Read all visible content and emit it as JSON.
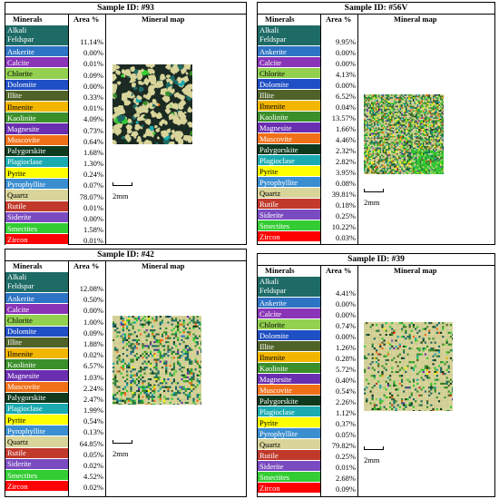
{
  "headers": {
    "minerals": "Minerals",
    "area": "Area %",
    "map": "Mineral map"
  },
  "scale_label": "2mm",
  "mineral_colors": {
    "Alkali Feldspar": "#1e6b66",
    "Ankerite": "#2e74c4",
    "Calcite": "#8a34b8",
    "Chlorite": "#92d050",
    "Dolomite": "#1f4fc4",
    "Illite": "#4f6228",
    "Ilmenite": "#f2b600",
    "Kaolinite": "#3a8f2a",
    "Magnesite": "#6a2fb0",
    "Muscovite": "#f07018",
    "Palygorskite": "#0f3a1e",
    "Plagioclase": "#1aaab0",
    "Pyrite": "#ffff00",
    "Pyrophyllite": "#3b8ecf",
    "Quartz": "#d8d49a",
    "Rutile": "#c0392b",
    "Siderite": "#7a4bc0",
    "Smectites": "#33cc33",
    "Zircon": "#ff0000"
  },
  "samples": [
    {
      "title": "Sample ID: #93",
      "rows": [
        {
          "name": [
            "Alkali",
            "Feldspar"
          ],
          "value": "11.14%"
        },
        {
          "name": [
            "Ankerite"
          ],
          "value": "0.00%"
        },
        {
          "name": [
            "Calcite"
          ],
          "value": "0.01%"
        },
        {
          "name": [
            "Chlorite"
          ],
          "value": "0.09%"
        },
        {
          "name": [
            "Dolomite"
          ],
          "value": "0.00%"
        },
        {
          "name": [
            "Illite"
          ],
          "value": "0.33%"
        },
        {
          "name": [
            "Ilmenite"
          ],
          "value": "0.01%"
        },
        {
          "name": [
            "Kaolinite"
          ],
          "value": "4.09%"
        },
        {
          "name": [
            "Magnesite"
          ],
          "value": "0.73%"
        },
        {
          "name": [
            "Muscovite"
          ],
          "value": "0.64%"
        },
        {
          "name": [
            "Palygorskite"
          ],
          "value": "1.68%"
        },
        {
          "name": [
            "Plagioclase"
          ],
          "value": "1.30%"
        },
        {
          "name": [
            "Pyrite"
          ],
          "value": "0.24%"
        },
        {
          "name": [
            "Pyrophyllite"
          ],
          "value": "0.07%"
        },
        {
          "name": [
            "Quartz"
          ],
          "value": "78.07%"
        },
        {
          "name": [
            "Rutile"
          ],
          "value": "0.01%"
        },
        {
          "name": [
            "Siderite"
          ],
          "value": "0.00%"
        },
        {
          "name": [
            "Smectites"
          ],
          "value": "1.58%"
        },
        {
          "name": [
            "Zircon"
          ],
          "value": "0.01%"
        }
      ]
    },
    {
      "title": "Sample ID: #56V",
      "rows": [
        {
          "name": [
            "Alkali",
            "Feldspar"
          ],
          "value": "9.95%"
        },
        {
          "name": [
            "Ankerite"
          ],
          "value": "0.00%"
        },
        {
          "name": [
            "Calcite"
          ],
          "value": "0.00%"
        },
        {
          "name": [
            "Chlorite"
          ],
          "value": "4.13%"
        },
        {
          "name": [
            "Dolomite"
          ],
          "value": "0.00%"
        },
        {
          "name": [
            "Illite"
          ],
          "value": "6.52%"
        },
        {
          "name": [
            "Ilmenite"
          ],
          "value": "0.04%"
        },
        {
          "name": [
            "Kaolinite"
          ],
          "value": "13.57%"
        },
        {
          "name": [
            "Magnesite"
          ],
          "value": "1.66%"
        },
        {
          "name": [
            "Muscovite"
          ],
          "value": "4.46%"
        },
        {
          "name": [
            "Palygorskite"
          ],
          "value": "2.32%"
        },
        {
          "name": [
            "Plagioclase"
          ],
          "value": "2.82%"
        },
        {
          "name": [
            "Pyrite"
          ],
          "value": "3.95%"
        },
        {
          "name": [
            "Pyrophyllite"
          ],
          "value": "0.08%"
        },
        {
          "name": [
            "Quartz"
          ],
          "value": "39.81%"
        },
        {
          "name": [
            "Rutile"
          ],
          "value": "0.18%"
        },
        {
          "name": [
            "Siderite"
          ],
          "value": "0.25%"
        },
        {
          "name": [
            "Smectites"
          ],
          "value": "10.22%"
        },
        {
          "name": [
            "Zircon"
          ],
          "value": "0.03%"
        }
      ]
    },
    {
      "title": "Sample ID: #42",
      "rows": [
        {
          "name": [
            "Alkali",
            "Feldspar"
          ],
          "value": "12.08%"
        },
        {
          "name": [
            "Ankerite"
          ],
          "value": "0.50%"
        },
        {
          "name": [
            "Calcite"
          ],
          "value": "0.00%"
        },
        {
          "name": [
            "Chlorite"
          ],
          "value": "1.00%"
        },
        {
          "name": [
            "Dolomite"
          ],
          "value": "0.09%"
        },
        {
          "name": [
            "Illite"
          ],
          "value": "1.88%"
        },
        {
          "name": [
            "Ilmenite"
          ],
          "value": "0.02%"
        },
        {
          "name": [
            "Kaolinite"
          ],
          "value": "6.57%"
        },
        {
          "name": [
            "Magnesite"
          ],
          "value": "1.03%"
        },
        {
          "name": [
            "Muscovite"
          ],
          "value": "2.24%"
        },
        {
          "name": [
            "Palygorskite"
          ],
          "value": "2.47%"
        },
        {
          "name": [
            "Plagioclase"
          ],
          "value": "1.99%"
        },
        {
          "name": [
            "Pyrite"
          ],
          "value": "0.54%"
        },
        {
          "name": [
            "Pyrophyllite"
          ],
          "value": "0.13%"
        },
        {
          "name": [
            "Quartz"
          ],
          "value": "64.85%"
        },
        {
          "name": [
            "Rutile"
          ],
          "value": "0.05%"
        },
        {
          "name": [
            "Siderite"
          ],
          "value": "0.02%"
        },
        {
          "name": [
            "Smectites"
          ],
          "value": "4.52%"
        },
        {
          "name": [
            "Zircon"
          ],
          "value": "0.02%"
        }
      ]
    },
    {
      "title": "Sample ID: #39",
      "rows": [
        {
          "name": [
            "Alkali",
            "Feldspar"
          ],
          "value": "4.41%"
        },
        {
          "name": [
            "Ankerite"
          ],
          "value": "0.00%"
        },
        {
          "name": [
            "Calcite"
          ],
          "value": "0.00%"
        },
        {
          "name": [
            "Chlorite"
          ],
          "value": "0.74%"
        },
        {
          "name": [
            "Dolomite"
          ],
          "value": "0.00%"
        },
        {
          "name": [
            "Illite"
          ],
          "value": "1.26%"
        },
        {
          "name": [
            "Ilmenite"
          ],
          "value": "0.28%"
        },
        {
          "name": [
            "Kaolinite"
          ],
          "value": "5.72%"
        },
        {
          "name": [
            "Magnesite"
          ],
          "value": "0.40%"
        },
        {
          "name": [
            "Muscovite"
          ],
          "value": "0.54%"
        },
        {
          "name": [
            "Palygorskite"
          ],
          "value": "2.26%"
        },
        {
          "name": [
            "Plagioclase"
          ],
          "value": "1.12%"
        },
        {
          "name": [
            "Pyrite"
          ],
          "value": "0.37%"
        },
        {
          "name": [
            "Pyrophyllite"
          ],
          "value": "0.05%"
        },
        {
          "name": [
            "Quartz"
          ],
          "value": "79.82%"
        },
        {
          "name": [
            "Rutile"
          ],
          "value": "0.25%"
        },
        {
          "name": [
            "Siderite"
          ],
          "value": "0.01%"
        },
        {
          "name": [
            "Smectites"
          ],
          "value": "2.68%"
        },
        {
          "name": [
            "Zircon"
          ],
          "value": "0.09%"
        }
      ]
    }
  ]
}
